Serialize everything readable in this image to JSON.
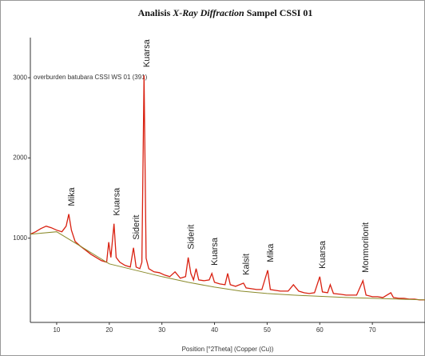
{
  "chart_data": {
    "type": "line",
    "title_parts": [
      "Analisis ",
      "X-Ray Diffraction",
      " Sampel CSSI 01"
    ],
    "legend_label": "overburden batubara CSSI WS 01  (391)",
    "xlabel": "Position [°2Theta] (Copper (Cu))",
    "xlim": [
      5,
      80
    ],
    "ylim": [
      -50,
      3500
    ],
    "xticks": [
      10,
      20,
      30,
      40,
      50,
      60,
      70
    ],
    "yticks": [
      1000,
      2000,
      3000
    ],
    "x": [
      5,
      6,
      7,
      8,
      9,
      10,
      11,
      11.8,
      12.3,
      12.8,
      13.5,
      14.5,
      15.5,
      16.5,
      17.5,
      18.5,
      19.5,
      19.9,
      20.3,
      20.9,
      21.3,
      22,
      23,
      24,
      24.6,
      25.1,
      25.8,
      26.2,
      26.6,
      27,
      27.5,
      28.5,
      29.5,
      30.5,
      31.5,
      32.5,
      33.5,
      34.5,
      35,
      35.5,
      36,
      36.5,
      37,
      38,
      39,
      39.5,
      40,
      41,
      42,
      42.5,
      43,
      44,
      45.5,
      46,
      47,
      48,
      49,
      50.1,
      50.6,
      51.5,
      52.5,
      54,
      55,
      56,
      57,
      58,
      59,
      60,
      60.5,
      61.5,
      62,
      62.6,
      64,
      65,
      66,
      67,
      68.2,
      68.8,
      70,
      71,
      72,
      73.5,
      74,
      75,
      76,
      77,
      78,
      79,
      80
    ],
    "series": [
      {
        "name": "overburden batubara CSSI WS 01",
        "color": "#d92010",
        "values": [
          1050,
          1080,
          1120,
          1150,
          1130,
          1100,
          1080,
          1150,
          1300,
          1100,
          960,
          900,
          850,
          800,
          760,
          720,
          700,
          950,
          760,
          1180,
          760,
          700,
          660,
          640,
          880,
          640,
          620,
          700,
          3030,
          750,
          620,
          580,
          570,
          540,
          520,
          580,
          500,
          520,
          760,
          560,
          480,
          620,
          480,
          470,
          480,
          560,
          450,
          430,
          420,
          560,
          420,
          400,
          440,
          380,
          370,
          360,
          360,
          600,
          360,
          350,
          340,
          340,
          420,
          340,
          320,
          310,
          320,
          520,
          330,
          320,
          420,
          310,
          300,
          290,
          290,
          290,
          470,
          290,
          270,
          270,
          260,
          320,
          260,
          250,
          250,
          240,
          240,
          230,
          230
        ]
      }
    ],
    "background": {
      "color": "#8a8a2a",
      "x": [
        5,
        10,
        15,
        20,
        25,
        30,
        35,
        40,
        45,
        50,
        55,
        60,
        65,
        70,
        75,
        80
      ],
      "values": [
        1050,
        1080,
        880,
        680,
        600,
        520,
        450,
        390,
        340,
        310,
        290,
        275,
        260,
        250,
        240,
        230
      ]
    },
    "annotations": [
      {
        "text": "Mika",
        "x": 12.3
      },
      {
        "text": "Kuarsa",
        "x": 20.9
      },
      {
        "text": "Siderit",
        "x": 24.6
      },
      {
        "text": "Kuarsa",
        "x": 26.6
      },
      {
        "text": "Siderit",
        "x": 35
      },
      {
        "text": "Kuarsa",
        "x": 39.5
      },
      {
        "text": "Kalsit",
        "x": 45.5
      },
      {
        "text": "Mika",
        "x": 50.1
      },
      {
        "text": "Kuarsa",
        "x": 60
      },
      {
        "text": "Monmorilonit",
        "x": 68.2
      }
    ]
  }
}
